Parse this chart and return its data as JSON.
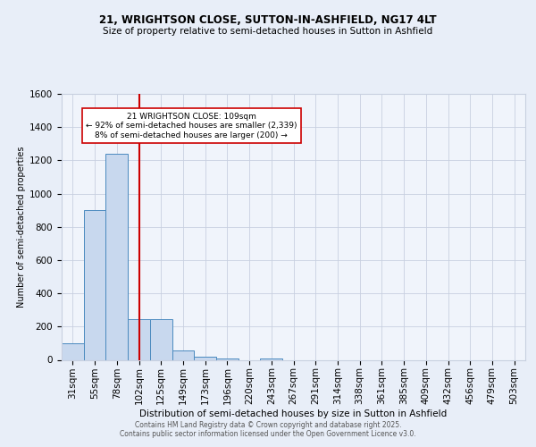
{
  "title1": "21, WRIGHTSON CLOSE, SUTTON-IN-ASHFIELD, NG17 4LT",
  "title2": "Size of property relative to semi-detached houses in Sutton in Ashfield",
  "xlabel": "Distribution of semi-detached houses by size in Sutton in Ashfield",
  "ylabel": "Number of semi-detached properties",
  "bar_values": [
    100,
    900,
    1240,
    245,
    245,
    55,
    20,
    10,
    0,
    10,
    0,
    0,
    0,
    0,
    0,
    0,
    0,
    0,
    0,
    0,
    0
  ],
  "bar_labels": [
    "31sqm",
    "55sqm",
    "78sqm",
    "102sqm",
    "125sqm",
    "149sqm",
    "173sqm",
    "196sqm",
    "220sqm",
    "243sqm",
    "267sqm",
    "291sqm",
    "314sqm",
    "338sqm",
    "361sqm",
    "385sqm",
    "409sqm",
    "432sqm",
    "456sqm",
    "479sqm",
    "503sqm"
  ],
  "bar_color": "#c8d8ee",
  "bar_edge_color": "#4a8abf",
  "vline_x": 3.0,
  "vline_color": "#cc0000",
  "annotation_title": "21 WRIGHTSON CLOSE: 109sqm",
  "annotation_line1": "← 92% of semi-detached houses are smaller (2,339)",
  "annotation_line2": "8% of semi-detached houses are larger (200) →",
  "annotation_box_color": "#ffffff",
  "annotation_box_edge": "#cc0000",
  "ylim": [
    0,
    1600
  ],
  "yticks": [
    0,
    200,
    400,
    600,
    800,
    1000,
    1200,
    1400,
    1600
  ],
  "footer1": "Contains HM Land Registry data © Crown copyright and database right 2025.",
  "footer2": "Contains public sector information licensed under the Open Government Licence v3.0.",
  "bg_color": "#e8eef8",
  "plot_bg_color": "#f0f4fb",
  "grid_color": "#c8d0e0"
}
